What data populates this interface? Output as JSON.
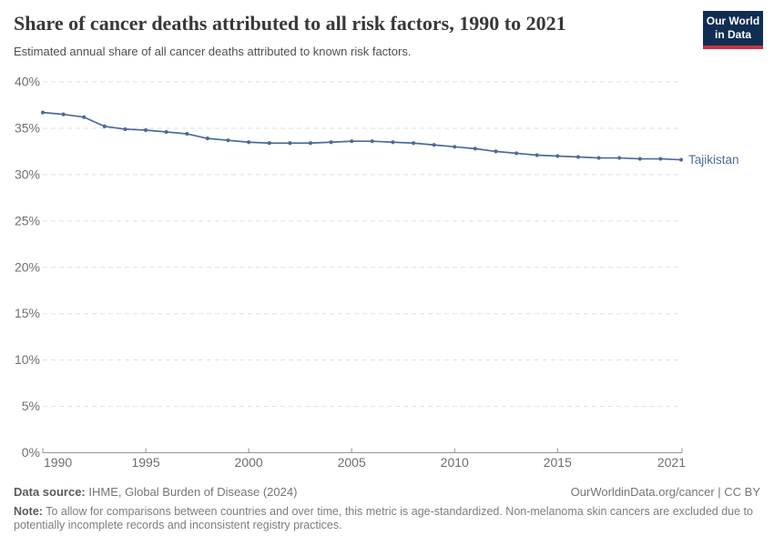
{
  "header": {
    "title": "Share of cancer deaths attributed to all risk factors, 1990 to 2021",
    "subtitle": "Estimated annual share of all cancer deaths attributed to known risk factors.",
    "logo": {
      "line1": "Our World",
      "line2": "in Data",
      "bg_color": "#102d52",
      "accent_color": "#c5353f"
    }
  },
  "chart_data": {
    "type": "line",
    "title": "Share of cancer deaths attributed to all risk factors, 1990 to 2021",
    "x": [
      1990,
      1991,
      1992,
      1993,
      1994,
      1995,
      1996,
      1997,
      1998,
      1999,
      2000,
      2001,
      2002,
      2003,
      2004,
      2005,
      2006,
      2007,
      2008,
      2009,
      2010,
      2011,
      2012,
      2013,
      2014,
      2015,
      2016,
      2017,
      2018,
      2019,
      2020,
      2021
    ],
    "series": [
      {
        "name": "Tajikistan",
        "color": "#4c6a9c",
        "values": [
          36.7,
          36.5,
          36.2,
          35.2,
          34.9,
          34.8,
          34.6,
          34.4,
          33.9,
          33.7,
          33.5,
          33.4,
          33.4,
          33.4,
          33.5,
          33.6,
          33.6,
          33.5,
          33.4,
          33.2,
          33.0,
          32.8,
          32.5,
          32.3,
          32.1,
          32.0,
          31.9,
          31.8,
          31.8,
          31.7,
          31.7,
          31.6
        ]
      }
    ],
    "ylim": [
      0,
      40
    ],
    "yticks": [
      0,
      5,
      10,
      15,
      20,
      25,
      30,
      35,
      40
    ],
    "ytick_suffix": "%",
    "xticks": [
      1990,
      1995,
      2000,
      2005,
      2010,
      2015,
      2021
    ],
    "grid": true,
    "legend_position": "end-of-line label",
    "axis_label_color": "#6e6e6e",
    "gridline_color": "#e0e0e0"
  },
  "footer": {
    "datasource_label": "Data source:",
    "datasource_value": " IHME, Global Burden of Disease (2024)",
    "rights": "OurWorldinData.org/cancer | CC BY",
    "note_label": "Note:",
    "note_value": " To allow for comparisons between countries and over time, this metric is age-standardized. Non-melanoma skin cancers are excluded due to potentially incomplete records and inconsistent registry practices."
  }
}
